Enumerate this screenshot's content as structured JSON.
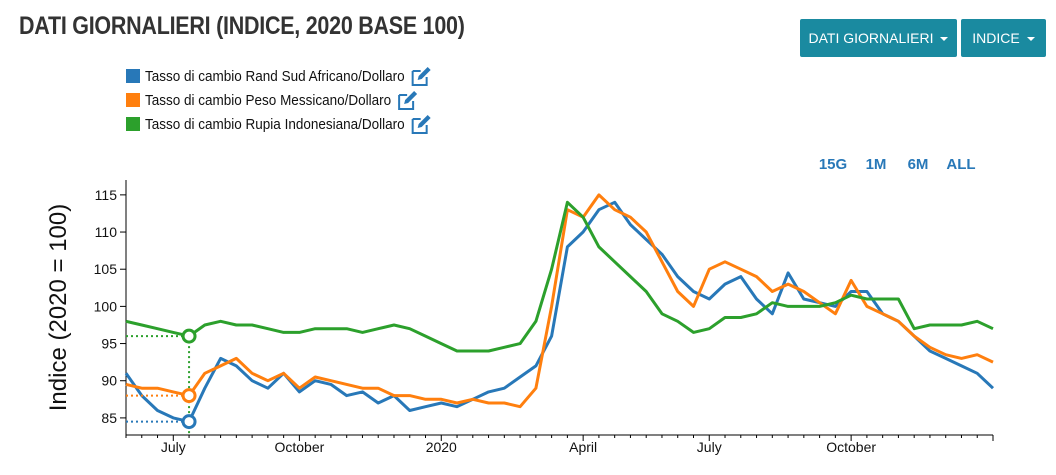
{
  "controls": {
    "buttons": [
      "DATI GIORNALIERI",
      "INDICE"
    ],
    "range_buttons": [
      "15G",
      "1M",
      "6M",
      "ALL"
    ]
  },
  "chart_data": {
    "type": "line",
    "title": "DATI GIORNALIERI (INDICE, 2020 BASE 100)",
    "y_label": "Indice (2020 = 100)",
    "categories": [
      null,
      null,
      null,
      "July",
      null,
      null,
      null,
      null,
      null,
      null,
      null,
      "October",
      null,
      null,
      null,
      null,
      null,
      null,
      null,
      null,
      "2020",
      null,
      null,
      null,
      null,
      null,
      null,
      null,
      null,
      "April",
      null,
      null,
      null,
      null,
      null,
      null,
      null,
      "July",
      null,
      null,
      null,
      null,
      null,
      null,
      null,
      null,
      "October",
      null,
      null,
      null,
      null,
      null,
      null,
      null,
      null,
      null
    ],
    "series": [
      {
        "name": "Tasso di cambio Rand Sud Africano/Dollaro",
        "color": "#2878b8",
        "values": [
          91,
          88,
          86,
          85,
          84.5,
          89,
          93,
          92,
          90,
          89,
          91,
          88.5,
          90,
          89.5,
          88,
          88.5,
          87,
          88,
          86,
          86.5,
          87,
          86.5,
          87.5,
          88.5,
          89,
          90.5,
          92,
          96,
          108,
          110,
          113,
          114,
          111,
          109,
          107,
          104,
          102,
          101,
          103,
          104,
          101,
          99,
          104.5,
          101,
          100.5,
          100,
          102,
          102,
          99,
          98,
          96,
          94,
          93,
          92,
          91,
          89
        ]
      },
      {
        "name": "Tasso di cambio Peso Messicano/Dollaro",
        "color": "#ff7f0e",
        "values": [
          89.5,
          89,
          89,
          88.5,
          88,
          91,
          92,
          93,
          91,
          90,
          91,
          89,
          90.5,
          90,
          89.5,
          89,
          89,
          88,
          88,
          87.5,
          87.5,
          87,
          87.5,
          87,
          87,
          86.5,
          89,
          100,
          113,
          112,
          115,
          113,
          112,
          110,
          106,
          102,
          100,
          105,
          106,
          105,
          104,
          102,
          103,
          102,
          100.5,
          99,
          103.5,
          100,
          99,
          98,
          96,
          94.5,
          93.5,
          93,
          93.5,
          92.5
        ]
      },
      {
        "name": "Tasso di cambio Rupia Indonesiana/Dollaro",
        "color": "#2ca02c",
        "values": [
          98,
          97.5,
          97,
          96.5,
          96,
          97.5,
          98,
          97.5,
          97.5,
          97,
          96.5,
          96.5,
          97,
          97,
          97,
          96.5,
          97,
          97.5,
          97,
          96,
          95,
          94,
          94,
          94,
          94.5,
          95,
          98,
          105,
          114,
          112,
          108,
          106,
          104,
          102,
          99,
          98,
          96.5,
          97,
          98.5,
          98.5,
          99,
          100.5,
          100,
          100,
          100,
          100.5,
          101.5,
          101,
          101,
          101,
          97,
          97.5,
          97.5,
          97.5,
          98,
          97
        ]
      }
    ],
    "ylim": [
      82.7,
      117
    ],
    "yticks": [
      85,
      90,
      95,
      100,
      105,
      110,
      115
    ],
    "hover_index": 4
  }
}
